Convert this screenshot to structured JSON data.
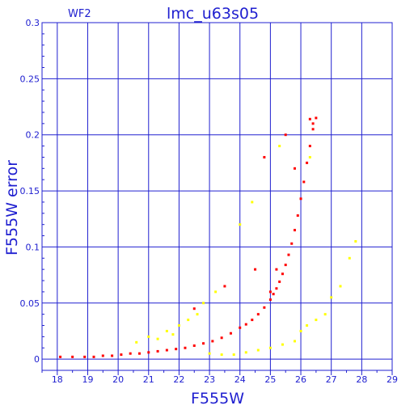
{
  "chart_data": {
    "type": "scatter",
    "title": "lmc_u63s05",
    "chip": "WF2",
    "xlabel": "F555W",
    "ylabel": "F555W error",
    "xlim": [
      17.5,
      29
    ],
    "ylim": [
      -0.01,
      0.3
    ],
    "xticks": [
      18,
      19,
      20,
      21,
      22,
      23,
      24,
      25,
      26,
      27,
      28,
      29
    ],
    "yticks": [
      0,
      0.05,
      0.1,
      0.15,
      0.2,
      0.25,
      0.3
    ],
    "ytick_labels": [
      "0",
      "0.05",
      "0.1",
      "0.15",
      "0.2",
      "0.25",
      "0.3"
    ],
    "grid": true,
    "series": [
      {
        "color": "#ff0000",
        "x": [
          18.1,
          18.5,
          18.9,
          19.2,
          19.5,
          19.8,
          20.1,
          20.4,
          20.7,
          21.0,
          21.3,
          21.6,
          21.9,
          22.2,
          22.5,
          22.8,
          23.1,
          23.4,
          23.7,
          24.0,
          24.2,
          24.4,
          24.6,
          24.8,
          25.0,
          25.1,
          25.2,
          25.3,
          25.4,
          25.5,
          25.6,
          25.7,
          25.8,
          25.9,
          26.0,
          26.1,
          26.2,
          26.3,
          26.4,
          26.5,
          25.0,
          25.2,
          25.5,
          25.8,
          24.5,
          24.8,
          23.5,
          22.5,
          26.3,
          26.4
        ],
        "y": [
          0.002,
          0.002,
          0.002,
          0.002,
          0.003,
          0.003,
          0.004,
          0.005,
          0.005,
          0.006,
          0.007,
          0.008,
          0.009,
          0.01,
          0.012,
          0.014,
          0.016,
          0.019,
          0.023,
          0.028,
          0.031,
          0.035,
          0.04,
          0.046,
          0.053,
          0.058,
          0.063,
          0.069,
          0.076,
          0.084,
          0.093,
          0.103,
          0.115,
          0.128,
          0.143,
          0.158,
          0.175,
          0.19,
          0.205,
          0.215,
          0.06,
          0.08,
          0.2,
          0.17,
          0.08,
          0.18,
          0.065,
          0.045,
          0.214,
          0.21
        ]
      },
      {
        "color": "#ffff00",
        "x": [
          20.6,
          21.0,
          21.3,
          21.6,
          21.8,
          22.0,
          22.3,
          22.6,
          23.0,
          23.4,
          23.8,
          24.2,
          24.6,
          25.0,
          25.4,
          25.8,
          26.0,
          26.2,
          26.5,
          26.8,
          27.0,
          27.3,
          27.6,
          27.8,
          22.8,
          23.2,
          24.0,
          24.4,
          25.3,
          26.3
        ],
        "y": [
          0.015,
          0.02,
          0.018,
          0.025,
          0.022,
          0.03,
          0.035,
          0.04,
          0.005,
          0.004,
          0.004,
          0.006,
          0.008,
          0.01,
          0.013,
          0.016,
          0.025,
          0.03,
          0.035,
          0.04,
          0.055,
          0.065,
          0.09,
          0.105,
          0.05,
          0.06,
          0.12,
          0.14,
          0.19,
          0.18
        ]
      }
    ]
  }
}
